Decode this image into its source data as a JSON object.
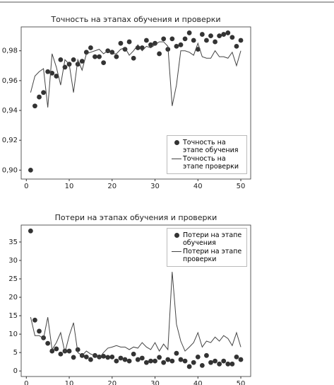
{
  "chart_data": [
    {
      "type": "line",
      "title": "Точность на этапах обучения и проверки",
      "x": [
        1,
        2,
        3,
        4,
        5,
        6,
        7,
        8,
        9,
        10,
        11,
        12,
        13,
        14,
        15,
        16,
        17,
        18,
        19,
        20,
        21,
        22,
        23,
        24,
        25,
        26,
        27,
        28,
        29,
        30,
        31,
        32,
        33,
        34,
        35,
        36,
        37,
        38,
        39,
        40,
        41,
        42,
        43,
        44,
        45,
        46,
        47,
        48,
        49,
        50
      ],
      "series": [
        {
          "name": "Точность на этапе обучения",
          "color": "#333333",
          "kind": "scatter",
          "values": [
            0.9,
            0.943,
            0.949,
            0.952,
            0.966,
            0.965,
            0.963,
            0.974,
            0.969,
            0.971,
            0.974,
            0.971,
            0.973,
            0.979,
            0.982,
            0.976,
            0.976,
            0.972,
            0.98,
            0.979,
            0.976,
            0.985,
            0.981,
            0.986,
            0.975,
            0.982,
            0.982,
            0.987,
            0.984,
            0.985,
            0.978,
            0.988,
            0.981,
            0.988,
            0.983,
            0.984,
            0.988,
            0.992,
            0.987,
            0.981,
            0.991,
            0.987,
            0.99,
            0.986,
            0.99,
            0.991,
            0.992,
            0.989,
            0.983,
            0.987
          ]
        },
        {
          "name": "Точность на этапе проверки",
          "color": "#444444",
          "kind": "line",
          "values": [
            0.952,
            0.963,
            0.966,
            0.968,
            0.942,
            0.978,
            0.969,
            0.957,
            0.974,
            0.971,
            0.952,
            0.974,
            0.967,
            0.978,
            0.979,
            0.98,
            0.981,
            0.978,
            0.98,
            0.978,
            0.978,
            0.981,
            0.982,
            0.977,
            0.98,
            0.984,
            0.98,
            0.983,
            0.982,
            0.984,
            0.986,
            0.986,
            0.983,
            0.943,
            0.957,
            0.98,
            0.98,
            0.979,
            0.977,
            0.985,
            0.976,
            0.975,
            0.975,
            0.98,
            0.976,
            0.976,
            0.975,
            0.979,
            0.97,
            0.98
          ]
        }
      ],
      "xlim": [
        -1.2,
        52.3
      ],
      "xticks": [
        0,
        10,
        20,
        30,
        40,
        50
      ],
      "ylim": [
        0.894,
        0.996
      ],
      "yticks": [
        {
          "value": 0.9,
          "label": "0,90"
        },
        {
          "value": 0.92,
          "label": "0,92"
        },
        {
          "value": 0.94,
          "label": "0,94"
        },
        {
          "value": 0.96,
          "label": "0,96"
        },
        {
          "value": 0.98,
          "label": "0,98"
        }
      ],
      "legend": "lower right"
    },
    {
      "type": "line",
      "title": "Потери на этапах обучения и проверки",
      "x": [
        1,
        2,
        3,
        4,
        5,
        6,
        7,
        8,
        9,
        10,
        11,
        12,
        13,
        14,
        15,
        16,
        17,
        18,
        19,
        20,
        21,
        22,
        23,
        24,
        25,
        26,
        27,
        28,
        29,
        30,
        31,
        32,
        33,
        34,
        35,
        36,
        37,
        38,
        39,
        40,
        41,
        42,
        43,
        44,
        45,
        46,
        47,
        48,
        49,
        50
      ],
      "series": [
        {
          "name": "Потери на этапе обучения",
          "color": "#333333",
          "kind": "scatter",
          "values": [
            38,
            13.8,
            10.8,
            9,
            7.5,
            5.4,
            6,
            4.6,
            5.4,
            5.4,
            3.7,
            5.8,
            4.2,
            3.8,
            3.1,
            4.2,
            3.8,
            4,
            3.7,
            3.8,
            2.7,
            3.5,
            3.1,
            2.7,
            4.6,
            3.1,
            3.5,
            2.3,
            2.7,
            2.7,
            3.7,
            2.3,
            3.1,
            2.7,
            4.8,
            3.1,
            2.7,
            1.2,
            2.3,
            3.8,
            1.5,
            4.2,
            2.3,
            2.7,
            1.9,
            2.7,
            1.9,
            1.9,
            3.8,
            3.1
          ]
        },
        {
          "name": "Потери на этапе проверки",
          "color": "#444444",
          "kind": "line",
          "values": [
            14.6,
            9.6,
            9.6,
            8.8,
            14.6,
            5.8,
            7.7,
            10.4,
            5,
            9.6,
            13.1,
            5,
            4.2,
            5.4,
            4.6,
            4.2,
            3.5,
            5,
            6.2,
            6.5,
            6.9,
            6.5,
            6.5,
            5.8,
            6.5,
            6.2,
            7.7,
            6.5,
            5.8,
            7.7,
            5.4,
            7.3,
            5.8,
            26.9,
            12.7,
            8.1,
            5.4,
            6.5,
            7.7,
            10.4,
            6.5,
            8.1,
            7.7,
            9.2,
            8.1,
            9.6,
            8.8,
            6.9,
            10.4,
            6.5
          ]
        }
      ],
      "xlim": [
        -1.2,
        52.3
      ],
      "xticks": [
        0,
        10,
        20,
        30,
        40,
        50
      ],
      "ylim": [
        -1.5,
        39.6
      ],
      "yticks": [
        0,
        5,
        10,
        15,
        20,
        25,
        30,
        35
      ],
      "legend": "upper right"
    }
  ]
}
